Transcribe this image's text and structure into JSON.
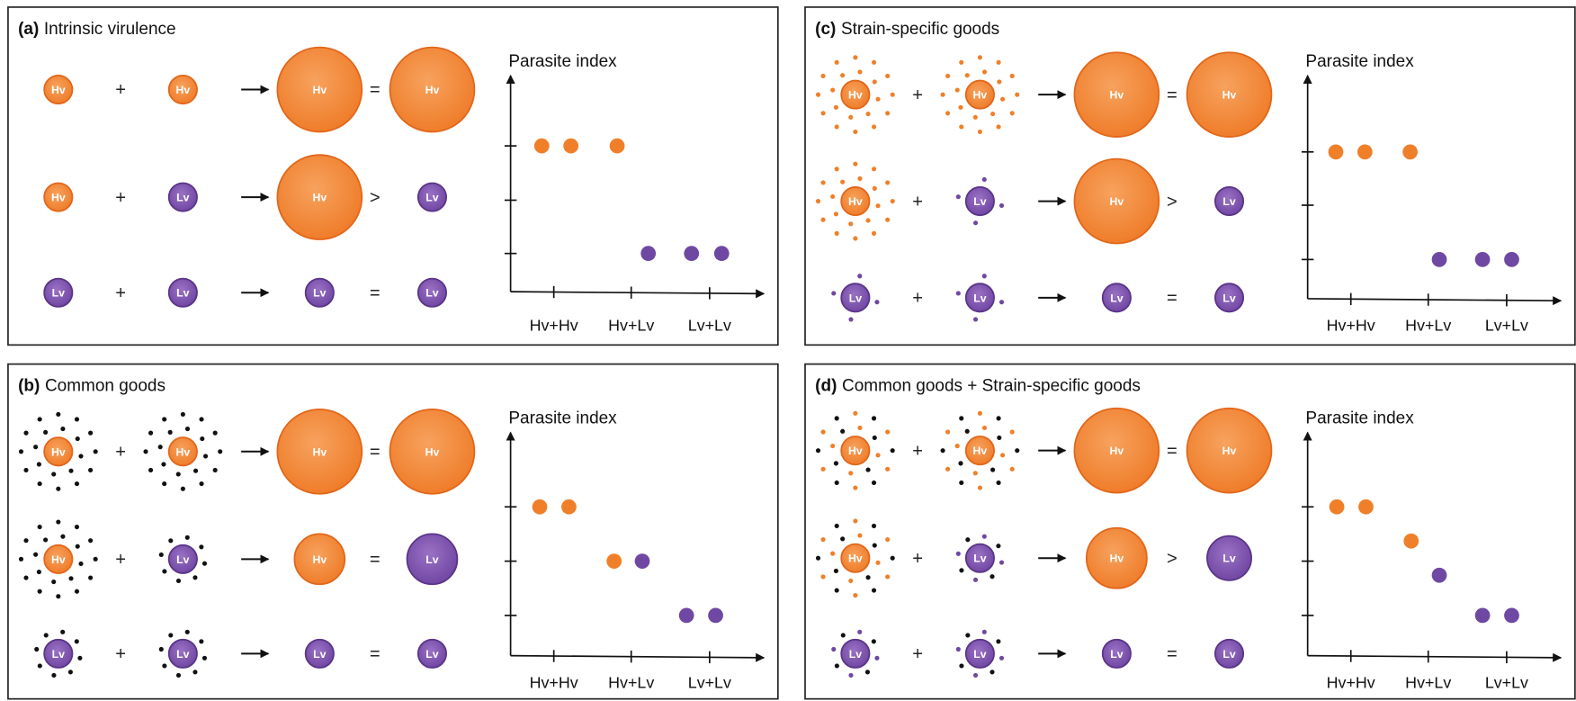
{
  "panels": [
    {
      "label": "(a)",
      "title": "Intrinsic virulence",
      "rows": [
        [
          "Hv",
          "+",
          "Hv",
          "Hv",
          "=",
          "Hv"
        ],
        [
          "Hv",
          "+",
          "Lv",
          "Hv",
          ">",
          "Lv"
        ],
        [
          "Lv",
          "+",
          "Lv",
          "Lv",
          "=",
          "Lv"
        ]
      ],
      "plot": {
        "ylabel": "Parasite index",
        "categories": [
          "Hv+Hv",
          "Hv+Lv",
          "Lv+Lv"
        ]
      }
    },
    {
      "label": "(b)",
      "title": "Common goods",
      "rows": [
        [
          "Hv",
          "+",
          "Hv",
          "Hv",
          "=",
          "Hv"
        ],
        [
          "Hv",
          "+",
          "Lv",
          "Hv",
          "=",
          "Lv"
        ],
        [
          "Lv",
          "+",
          "Lv",
          "Lv",
          "=",
          "Lv"
        ]
      ],
      "plot": {
        "ylabel": "Parasite index",
        "categories": [
          "Hv+Hv",
          "Hv+Lv",
          "Lv+Lv"
        ]
      }
    },
    {
      "label": "(c)",
      "title": "Strain-specific goods",
      "rows": [
        [
          "Hv",
          "+",
          "Hv",
          "Hv",
          "=",
          "Hv"
        ],
        [
          "Hv",
          "+",
          "Lv",
          "Hv",
          ">",
          "Lv"
        ],
        [
          "Lv",
          "+",
          "Lv",
          "Lv",
          "=",
          "Lv"
        ]
      ],
      "plot": {
        "ylabel": "Parasite index",
        "categories": [
          "Hv+Hv",
          "Hv+Lv",
          "Lv+Lv"
        ]
      }
    },
    {
      "label": "(d)",
      "title": "Common goods + Strain-specific goods",
      "rows": [
        [
          "Hv",
          "+",
          "Hv",
          "Hv",
          "=",
          "Hv"
        ],
        [
          "Hv",
          "+",
          "Lv",
          "Hv",
          ">",
          "Lv"
        ],
        [
          "Lv",
          "+",
          "Lv",
          "Lv",
          "=",
          "Lv"
        ]
      ],
      "plot": {
        "ylabel": "Parasite index",
        "categories": [
          "Hv+Hv",
          "Hv+Lv",
          "Lv+Lv"
        ]
      }
    }
  ]
}
